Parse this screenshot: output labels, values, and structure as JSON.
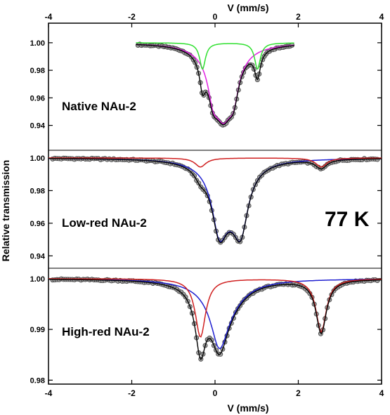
{
  "chart_data": {
    "type": "line",
    "x_label_top": "V (mm/s)",
    "x_label_bottom": "V (mm/s)",
    "y_label": "Relative transmission",
    "temperature_label": "77 K",
    "x_range": [
      -4,
      4
    ],
    "x_ticks": [
      "-4",
      "-2",
      "0",
      "2",
      "4"
    ],
    "x_tick_values": [
      -4,
      -2,
      0,
      2,
      4
    ],
    "panels": [
      {
        "label": "Native NAu-2",
        "x_range": [
          -1.9,
          1.9
        ],
        "ylim": [
          0.925,
          1.003
        ],
        "y_ticks": [
          "1.00",
          "0.98",
          "0.96",
          "0.94"
        ],
        "y_tick_values": [
          1.0,
          0.98,
          0.96,
          0.94
        ],
        "baseline": 1.0,
        "series": [
          {
            "component": "outer",
            "color": "#e020e0",
            "lines": [
              {
                "pos": -0.05,
                "depth": 0.0182,
                "width": 0.28
              },
              {
                "pos": 0.45,
                "depth": 0.0182,
                "width": 0.28
              },
              {
                "pos": 0.2,
                "depth": 0.05,
                "width": 0.62
              }
            ]
          },
          {
            "component": "inner",
            "color": "#30e030",
            "lines": [
              {
                "pos": -0.3,
                "depth": 0.019,
                "width": 0.17
              },
              {
                "pos": 1.02,
                "depth": 0.019,
                "width": 0.17
              }
            ]
          },
          {
            "component": "fit",
            "color": "#000000",
            "sum_of": [
              0,
              1
            ]
          }
        ],
        "data_points": {
          "x_start": -1.85,
          "x_end": 1.85,
          "count": 90,
          "marker_color": "#a0a0a0"
        }
      },
      {
        "label": "Low-red NAu-2",
        "x_range": [
          -4,
          4
        ],
        "ylim": [
          0.935,
          1.003
        ],
        "y_ticks": [
          "1.00",
          "0.98",
          "0.96",
          "0.94"
        ],
        "y_tick_values": [
          1.0,
          0.98,
          0.96,
          0.94
        ],
        "baseline": 1.0,
        "series": [
          {
            "component": "blue",
            "color": "#2020d0",
            "lines": [
              {
                "pos": 0.1,
                "depth": 0.032,
                "width": 0.42
              },
              {
                "pos": 0.62,
                "depth": 0.032,
                "width": 0.42
              },
              {
                "pos": 0.36,
                "depth": 0.02,
                "width": 0.8
              }
            ]
          },
          {
            "component": "red",
            "color": "#d02020",
            "lines": [
              {
                "pos": -0.35,
                "depth": 0.0055,
                "width": 0.32
              },
              {
                "pos": 2.55,
                "depth": 0.0055,
                "width": 0.32
              }
            ]
          },
          {
            "component": "fit",
            "color": "#000000",
            "sum_of": [
              0,
              1
            ]
          }
        ],
        "data_points": {
          "x_start": -3.9,
          "x_end": 3.9,
          "count": 150,
          "marker_color": "#a0a0a0"
        }
      },
      {
        "label": "High-red NAu-2",
        "x_range": [
          -4,
          4
        ],
        "ylim": [
          0.9795,
          1.0015
        ],
        "y_ticks": [
          "1.00",
          "0.99",
          "0.98"
        ],
        "y_tick_values": [
          1.0,
          0.99,
          0.98
        ],
        "baseline": 1.0,
        "series": [
          {
            "component": "blue",
            "color": "#2020d0",
            "lines": [
              {
                "pos": 0.1,
                "depth": 0.008,
                "width": 0.45
              },
              {
                "pos": 0.2,
                "depth": 0.006,
                "width": 1.0
              }
            ]
          },
          {
            "component": "red",
            "color": "#d02020",
            "lines": [
              {
                "pos": -0.35,
                "depth": 0.0115,
                "width": 0.3
              },
              {
                "pos": 2.55,
                "depth": 0.0105,
                "width": 0.3
              }
            ]
          },
          {
            "component": "fit",
            "color": "#000000",
            "sum_of": [
              0,
              1
            ]
          }
        ],
        "data_points": {
          "x_start": -3.9,
          "x_end": 3.9,
          "count": 150,
          "marker_color": "#a0a0a0"
        }
      }
    ]
  }
}
